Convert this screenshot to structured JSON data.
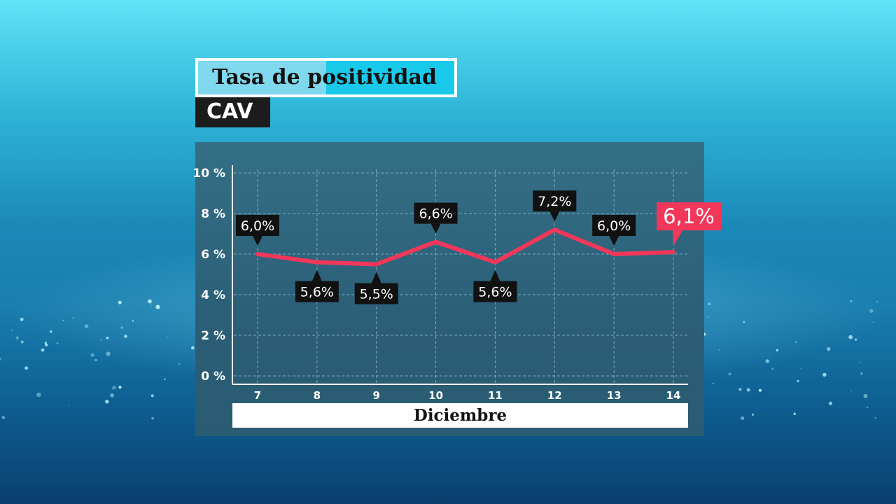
{
  "header": {
    "title": "Tasa de positividad",
    "subtitle": "CAV"
  },
  "colors": {
    "line": "#f2375a",
    "label_bg": "#111111",
    "highlight_bg": "#f2375a",
    "grid": "#9cc9d6",
    "text": "#ffffff"
  },
  "chart_data": {
    "type": "line",
    "title": "Tasa de positividad",
    "subtitle": "CAV",
    "xlabel": "Diciembre",
    "ylabel": "",
    "categories": [
      "7",
      "8",
      "9",
      "10",
      "11",
      "12",
      "13",
      "14"
    ],
    "y_ticks": [
      "0 %",
      "2 %",
      "4 %",
      "6 %",
      "8 %",
      "10 %"
    ],
    "ylim": [
      0,
      10
    ],
    "grid": true,
    "series": [
      {
        "values": [
          6.0,
          5.6,
          5.5,
          6.6,
          5.6,
          7.2,
          6.0,
          6.1
        ],
        "labels": [
          "6,0%",
          "5,6%",
          "5,5%",
          "6,6%",
          "5,6%",
          "7,2%",
          "6,0%",
          "6,1%"
        ],
        "label_positions": [
          "above",
          "below",
          "below",
          "above",
          "below",
          "above",
          "above",
          "highlight"
        ]
      }
    ]
  }
}
